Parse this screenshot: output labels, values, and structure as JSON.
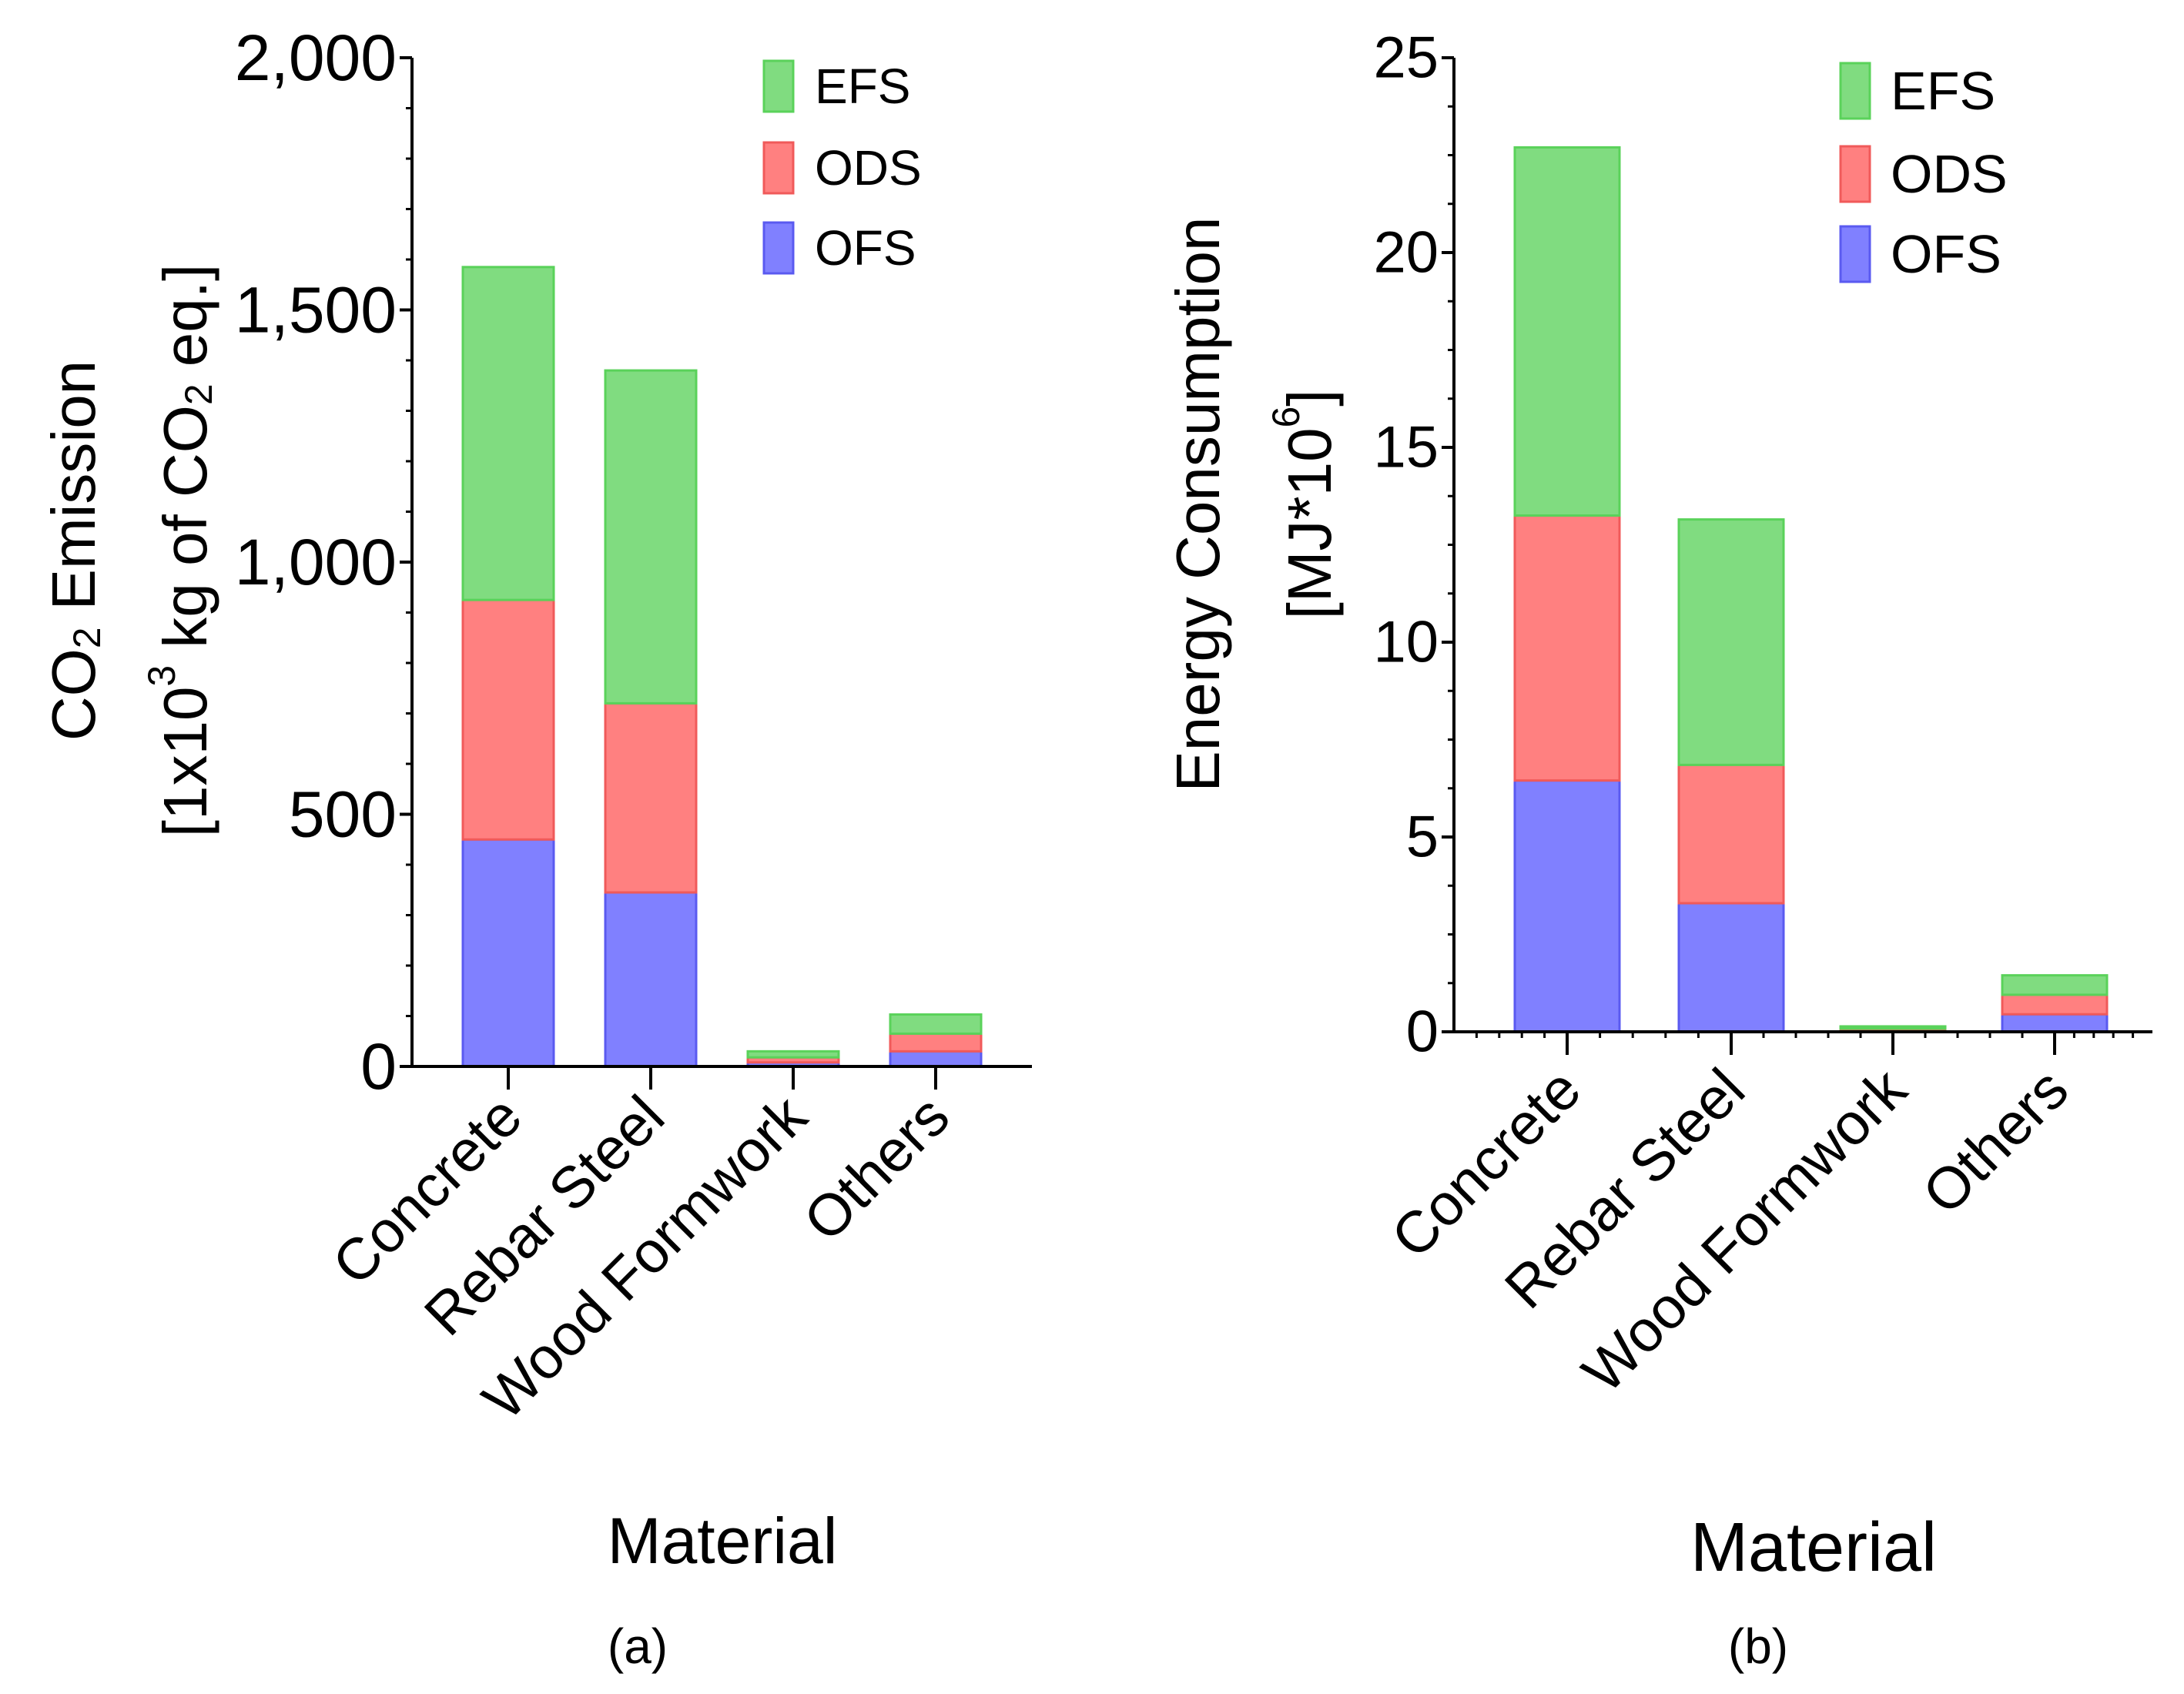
{
  "chart_data": [
    {
      "type": "bar",
      "stacked": true,
      "panel_label": "(a)",
      "categories": [
        "Concrete",
        "Rebar Steel",
        "Wood Formwork",
        "Others"
      ],
      "xlabel": "Material",
      "ylabel_line1": {
        "main": "CO",
        "sub": "2",
        "tail": " Emission"
      },
      "ylabel_line2": {
        "p1": "[1x10",
        "sup": "3",
        "p2": " kg of CO",
        "sub": "2",
        "p3": " eq.]"
      },
      "ylim": [
        0,
        2000
      ],
      "yticks": [
        0,
        500,
        1000,
        1500,
        2000
      ],
      "ytick_labels": [
        "0",
        "500",
        "1,000",
        "1,500",
        "2,000"
      ],
      "legend": [
        "EFS",
        "ODS",
        "OFS"
      ],
      "legend_position": "top-right",
      "series": [
        {
          "name": "OFS",
          "values": [
            450,
            345,
            8,
            30
          ]
        },
        {
          "name": "ODS",
          "values": [
            475,
            375,
            10,
            35
          ]
        },
        {
          "name": "EFS",
          "values": [
            660,
            660,
            12,
            38
          ]
        }
      ]
    },
    {
      "type": "bar",
      "stacked": true,
      "panel_label": "(b)",
      "categories": [
        "Concrete",
        "Rebar Steel",
        "Wood Formwork",
        "Others"
      ],
      "xlabel": "Material",
      "ylabel_line1": {
        "main": "Energy Consumption"
      },
      "ylabel_line2": {
        "p1": "[MJ*10",
        "sup": "6",
        "p2": "]"
      },
      "ylim": [
        0,
        25
      ],
      "yticks": [
        0,
        5,
        10,
        15,
        20,
        25
      ],
      "ytick_labels": [
        "0",
        "5",
        "10",
        "15",
        "20",
        "25"
      ],
      "legend": [
        "EFS",
        "ODS",
        "OFS"
      ],
      "legend_position": "top-right",
      "series": [
        {
          "name": "OFS",
          "values": [
            6.45,
            3.3,
            0.04,
            0.45
          ]
        },
        {
          "name": "ODS",
          "values": [
            6.8,
            3.55,
            0.04,
            0.5
          ]
        },
        {
          "name": "EFS",
          "values": [
            9.45,
            6.3,
            0.04,
            0.5
          ]
        }
      ]
    }
  ],
  "colors": {
    "OFS": {
      "fill": "#8080ff",
      "stroke": "#5a5af0"
    },
    "ODS": {
      "fill": "#ff8080",
      "stroke": "#f05a5a"
    },
    "EFS": {
      "fill": "#80dc80",
      "stroke": "#5ad25a"
    }
  }
}
